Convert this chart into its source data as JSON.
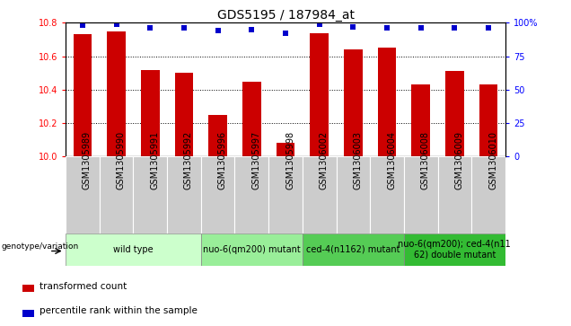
{
  "title": "GDS5195 / 187984_at",
  "samples": [
    "GSM1305989",
    "GSM1305990",
    "GSM1305991",
    "GSM1305992",
    "GSM1305996",
    "GSM1305997",
    "GSM1305998",
    "GSM1306002",
    "GSM1306003",
    "GSM1306004",
    "GSM1306008",
    "GSM1306009",
    "GSM1306010"
  ],
  "bar_values": [
    10.73,
    10.75,
    10.52,
    10.5,
    10.25,
    10.45,
    10.08,
    10.74,
    10.64,
    10.65,
    10.43,
    10.51,
    10.43
  ],
  "dot_values": [
    98,
    99,
    96,
    96,
    94,
    95,
    92,
    99,
    97,
    96,
    96,
    96,
    96
  ],
  "ylim_left": [
    10,
    10.8
  ],
  "ylim_right": [
    0,
    100
  ],
  "yticks_left": [
    10,
    10.2,
    10.4,
    10.6,
    10.8
  ],
  "yticks_right": [
    0,
    25,
    50,
    75,
    100
  ],
  "bar_color": "#cc0000",
  "dot_color": "#0000cc",
  "plot_bg_color": "#ffffff",
  "tick_area_color": "#cccccc",
  "groups": [
    {
      "label": "wild type",
      "indices": [
        0,
        1,
        2,
        3
      ],
      "color": "#ccffcc"
    },
    {
      "label": "nuo-6(qm200) mutant",
      "indices": [
        4,
        5,
        6
      ],
      "color": "#99ee99"
    },
    {
      "label": "ced-4(n1162) mutant",
      "indices": [
        7,
        8,
        9
      ],
      "color": "#55cc55"
    },
    {
      "label": "nuo-6(qm200); ced-4(n11\n62) double mutant",
      "indices": [
        10,
        11,
        12
      ],
      "color": "#33bb33"
    }
  ],
  "legend_bar_label": "transformed count",
  "legend_dot_label": "percentile rank within the sample",
  "genotype_label": "genotype/variation",
  "title_fontsize": 10,
  "tick_fontsize": 7,
  "group_fontsize": 7,
  "legend_fontsize": 7.5
}
